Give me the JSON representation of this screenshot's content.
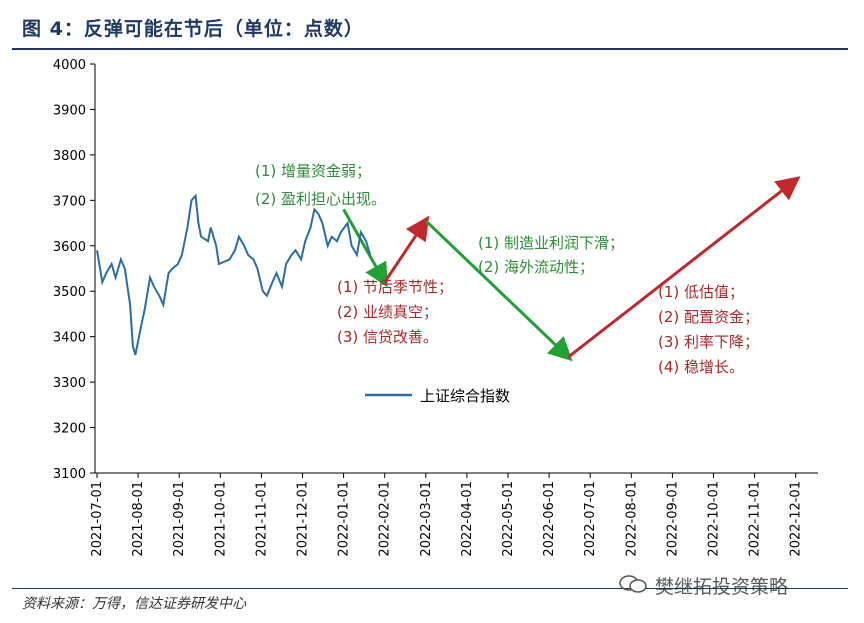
{
  "header": {
    "title": "图 4：反弹可能在节后（单位：点数）"
  },
  "footer": {
    "source": "资料来源：万得，信达证券研发中心",
    "watermark": "樊继拓投资策略"
  },
  "colors": {
    "series": "#2a6ea6",
    "green_arrow": "#22a034",
    "red_arrow": "#c0282d",
    "title": "#1f3864"
  },
  "annotations": {
    "a1": [
      "(1) 增量资金弱；",
      "(2) 盈利担心出现。"
    ],
    "a2": [
      "(1) 节后季节性；",
      "(2) 业绩真空；",
      "(3) 信贷改善。"
    ],
    "a3": [
      "(1) 制造业利润下滑；",
      "(2) 海外流动性；"
    ],
    "a4": [
      "(1)  低估值；",
      "(2)  配置资金；",
      "(3)  利率下降；",
      "(4)  稳增长。"
    ]
  },
  "chart_data": {
    "type": "line",
    "ylim": [
      3100,
      4000
    ],
    "yticks": [
      3100,
      3200,
      3300,
      3400,
      3500,
      3600,
      3700,
      3800,
      3900,
      4000
    ],
    "x_categories": [
      "2021-07-01",
      "2021-08-01",
      "2021-09-01",
      "2021-10-01",
      "2021-11-01",
      "2021-12-01",
      "2022-01-01",
      "2022-02-01",
      "2022-03-01",
      "2022-04-01",
      "2022-05-01",
      "2022-06-01",
      "2022-07-01",
      "2022-08-01",
      "2022-09-01",
      "2022-10-01",
      "2022-11-01",
      "2022-12-01"
    ],
    "legend": {
      "position": "center",
      "entries": [
        "上证综合指数"
      ]
    },
    "series": [
      {
        "name": "上证综合指数",
        "x": [
          "2021-07-01",
          "2021-07-05",
          "2021-07-08",
          "2021-07-12",
          "2021-07-15",
          "2021-07-19",
          "2021-07-22",
          "2021-07-26",
          "2021-07-28",
          "2021-07-30",
          "2021-08-03",
          "2021-08-06",
          "2021-08-10",
          "2021-08-13",
          "2021-08-17",
          "2021-08-20",
          "2021-08-24",
          "2021-08-27",
          "2021-08-31",
          "2021-09-03",
          "2021-09-07",
          "2021-09-10",
          "2021-09-13",
          "2021-09-15",
          "2021-09-17",
          "2021-09-22",
          "2021-09-24",
          "2021-09-28",
          "2021-09-30",
          "2021-10-08",
          "2021-10-12",
          "2021-10-15",
          "2021-10-19",
          "2021-10-22",
          "2021-10-26",
          "2021-10-29",
          "2021-11-02",
          "2021-11-05",
          "2021-11-09",
          "2021-11-12",
          "2021-11-16",
          "2021-11-19",
          "2021-11-23",
          "2021-11-26",
          "2021-11-30",
          "2021-12-03",
          "2021-12-07",
          "2021-12-10",
          "2021-12-13",
          "2021-12-16",
          "2021-12-20",
          "2021-12-23",
          "2021-12-27",
          "2021-12-30",
          "2022-01-04",
          "2022-01-07",
          "2022-01-11",
          "2022-01-14",
          "2022-01-18",
          "2022-01-21"
        ],
        "values": [
          3590,
          3520,
          3540,
          3560,
          3530,
          3570,
          3550,
          3470,
          3380,
          3360,
          3420,
          3460,
          3530,
          3510,
          3490,
          3470,
          3540,
          3550,
          3560,
          3580,
          3640,
          3700,
          3710,
          3650,
          3620,
          3610,
          3640,
          3600,
          3560,
          3570,
          3590,
          3620,
          3600,
          3580,
          3570,
          3550,
          3500,
          3490,
          3520,
          3540,
          3510,
          3560,
          3580,
          3590,
          3570,
          3610,
          3640,
          3680,
          3670,
          3650,
          3600,
          3620,
          3610,
          3630,
          3650,
          3600,
          3580,
          3630,
          3610,
          3580
        ]
      }
    ],
    "projection": [
      {
        "color": "green",
        "from": [
          "2022-01-01",
          3680
        ],
        "to": [
          "2022-02-01",
          3520
        ]
      },
      {
        "color": "red",
        "from": [
          "2022-02-01",
          3520
        ],
        "to": [
          "2022-03-01",
          3655
        ]
      },
      {
        "color": "green",
        "from": [
          "2022-03-01",
          3655
        ],
        "to": [
          "2022-06-15",
          3355
        ]
      },
      {
        "color": "red",
        "from": [
          "2022-06-15",
          3355
        ],
        "to": [
          "2022-12-01",
          3745
        ]
      }
    ]
  }
}
